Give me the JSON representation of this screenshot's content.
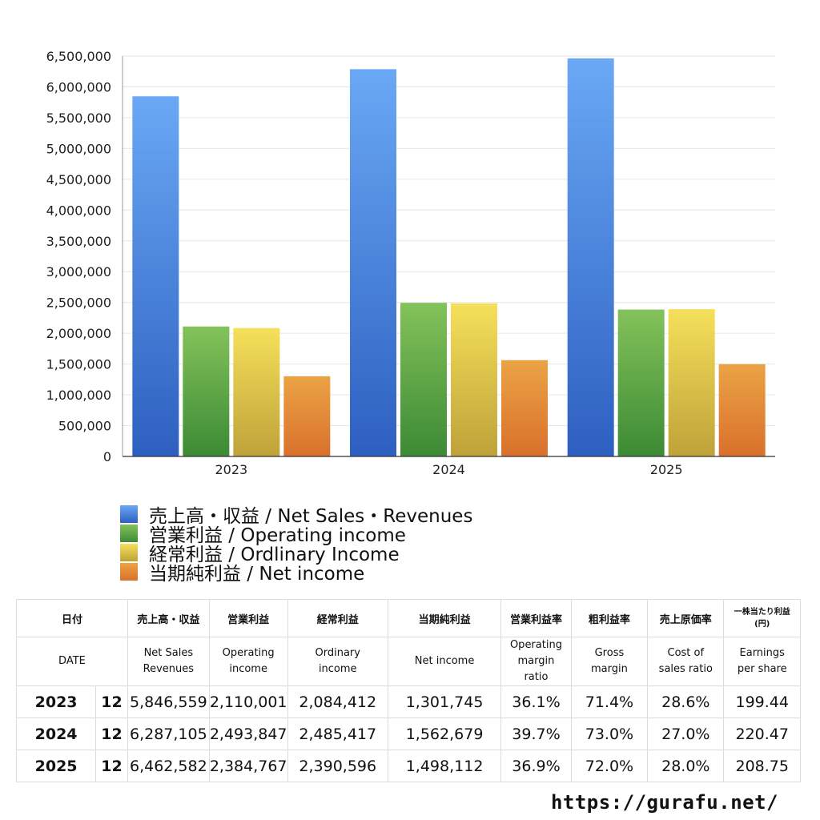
{
  "chart_data": {
    "type": "bar",
    "categories": [
      "2023",
      "2024",
      "2025"
    ],
    "series": [
      {
        "name": "売上高・収益 / Net Sales・Revenues",
        "values": [
          5846559,
          6287105,
          6462582
        ],
        "color": "#3f7fdc"
      },
      {
        "name": "営業利益 / Operating income",
        "values": [
          2110001,
          2493847,
          2384767
        ],
        "color": "#5aa845"
      },
      {
        "name": "経常利益 / Ordlinary Income",
        "values": [
          2084412,
          2485417,
          2390596
        ],
        "color": "#e3c63c"
      },
      {
        "name": "当期純利益 / Net income",
        "values": [
          1301745,
          1562679,
          1498112
        ],
        "color": "#e2863a"
      }
    ],
    "ylim": [
      0,
      6500000
    ],
    "yticks": [
      "0",
      "500,000",
      "1,000,000",
      "1,500,000",
      "2,000,000",
      "2,500,000",
      "3,000,000",
      "3,500,000",
      "4,000,000",
      "4,500,000",
      "5,000,000",
      "5,500,000",
      "6,000,000",
      "6,500,000"
    ],
    "ytick_values": [
      0,
      500000,
      1000000,
      1500000,
      2000000,
      2500000,
      3000000,
      3500000,
      4000000,
      4500000,
      5000000,
      5500000,
      6000000,
      6500000
    ],
    "grid": true,
    "legend_placement": "bottom-left"
  },
  "table": {
    "headers_ja": [
      "日付",
      "売上高・収益",
      "営業利益",
      "経常利益",
      "当期純利益",
      "営業利益率",
      "粗利益率",
      "売上原価率",
      "一株当たり利益",
      "(円)"
    ],
    "headers_en": [
      "DATE",
      "Net Sales",
      "Revenues",
      "Operating",
      "income",
      "Ordinary",
      "income",
      "Net income",
      "Operating",
      "margin",
      "ratio",
      "Gross",
      "margin",
      "Cost of",
      "sales ratio",
      "Earnings",
      "per share"
    ],
    "rows": [
      {
        "year": "2023",
        "month": "12",
        "sales": "5,846,559",
        "op": "2,110,001",
        "ord": "2,084,412",
        "net": "1,301,745",
        "opm": "36.1%",
        "gm": "71.4%",
        "cos": "28.6%",
        "eps": "199.44"
      },
      {
        "year": "2024",
        "month": "12",
        "sales": "6,287,105",
        "op": "2,493,847",
        "ord": "2,485,417",
        "net": "1,562,679",
        "opm": "39.7%",
        "gm": "73.0%",
        "cos": "27.0%",
        "eps": "220.47"
      },
      {
        "year": "2025",
        "month": "12",
        "sales": "6,462,582",
        "op": "2,384,767",
        "ord": "2,390,596",
        "net": "1,498,112",
        "opm": "36.9%",
        "gm": "72.0%",
        "cos": "28.0%",
        "eps": "208.75"
      }
    ]
  },
  "footer": {
    "url": "https://gurafu.net/"
  }
}
